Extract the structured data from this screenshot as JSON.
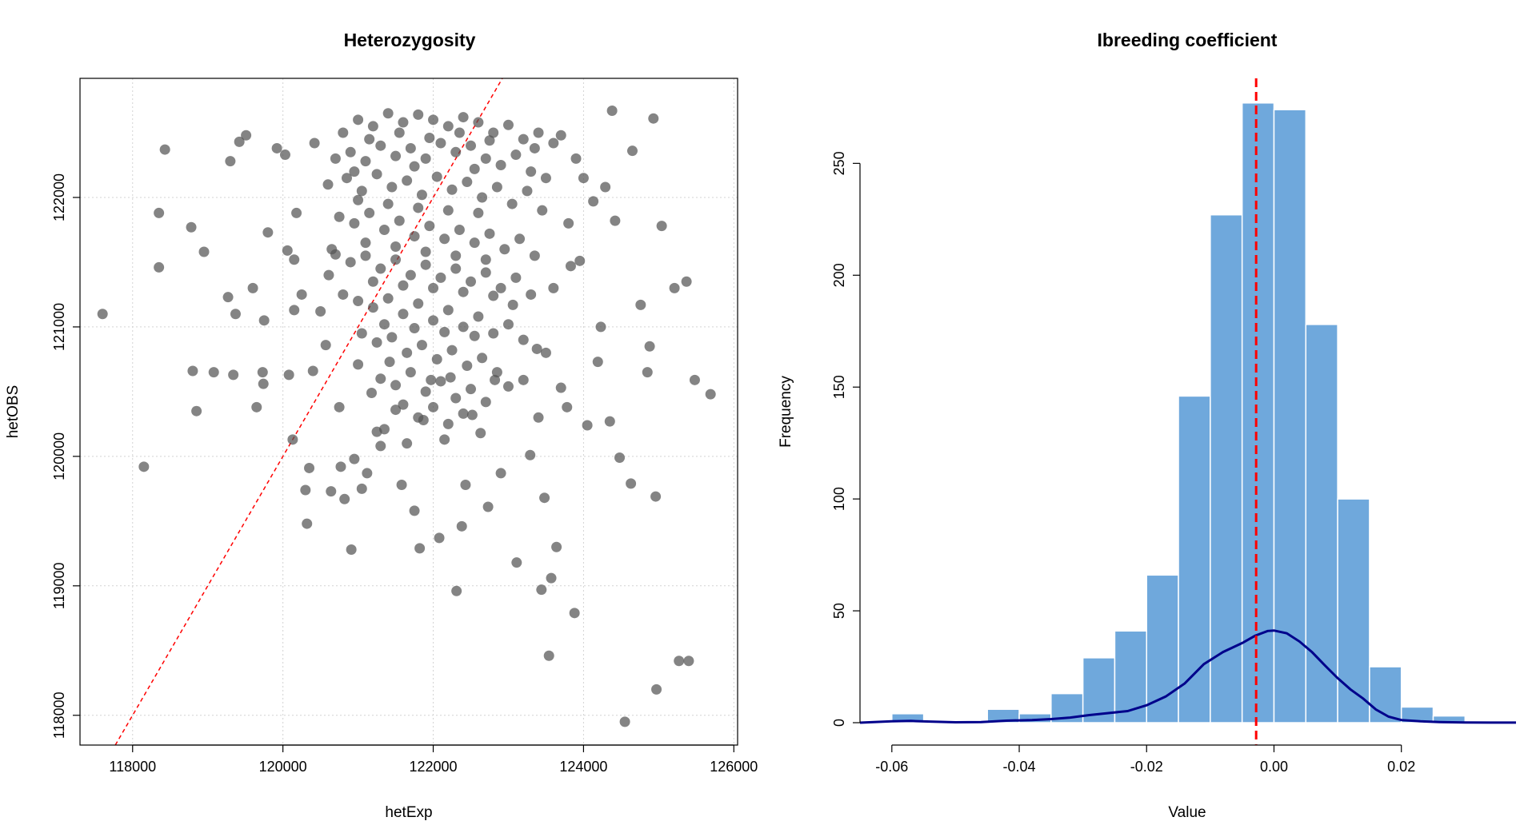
{
  "chart_data": [
    {
      "type": "scatter",
      "title": "Heterozygosity",
      "xlabel": "hetExp",
      "ylabel": "hetOBS",
      "xlim": [
        117300,
        126050
      ],
      "ylim": [
        117770,
        122920
      ],
      "x_ticks": [
        118000,
        120000,
        122000,
        124000,
        126000
      ],
      "x_tick_labels": [
        "118000",
        "120000",
        "122000",
        "124000",
        "126000"
      ],
      "y_ticks": [
        118000,
        119000,
        120000,
        121000,
        122000
      ],
      "y_tick_labels": [
        "118000",
        "119000",
        "120000",
        "121000",
        "122000"
      ],
      "grid": true,
      "point_color": "#555555",
      "reference_line": {
        "type": "identity",
        "slope": 1,
        "intercept": 0,
        "color": "#ff0000",
        "style": "dashed"
      },
      "points": [
        [
          117600,
          121100
        ],
        [
          118150,
          119920
        ],
        [
          118350,
          121880
        ],
        [
          118350,
          121460
        ],
        [
          118430,
          122370
        ],
        [
          118780,
          121770
        ],
        [
          118800,
          120660
        ],
        [
          118850,
          120350
        ],
        [
          118950,
          121580
        ],
        [
          119080,
          120650
        ],
        [
          119270,
          121230
        ],
        [
          119300,
          122280
        ],
        [
          119340,
          120630
        ],
        [
          119370,
          121100
        ],
        [
          119420,
          122430
        ],
        [
          119510,
          122480
        ],
        [
          119600,
          121300
        ],
        [
          119650,
          120380
        ],
        [
          119730,
          120650
        ],
        [
          119740,
          120560
        ],
        [
          119750,
          121050
        ],
        [
          119800,
          121730
        ],
        [
          119920,
          122380
        ],
        [
          120030,
          122330
        ],
        [
          120060,
          121590
        ],
        [
          120080,
          120630
        ],
        [
          120130,
          120130
        ],
        [
          120150,
          121520
        ],
        [
          120150,
          121130
        ],
        [
          120180,
          121880
        ],
        [
          120250,
          121250
        ],
        [
          120300,
          119740
        ],
        [
          120320,
          119480
        ],
        [
          120350,
          119910
        ],
        [
          120400,
          120660
        ],
        [
          120420,
          122420
        ],
        [
          120500,
          121120
        ],
        [
          120570,
          120860
        ],
        [
          120610,
          121400
        ],
        [
          120640,
          119730
        ],
        [
          120700,
          121560
        ],
        [
          120750,
          120380
        ],
        [
          120770,
          119920
        ],
        [
          120820,
          119670
        ],
        [
          120910,
          119280
        ],
        [
          120950,
          119980
        ],
        [
          121000,
          120710
        ],
        [
          121050,
          119750
        ],
        [
          121120,
          119870
        ],
        [
          121180,
          120490
        ],
        [
          121250,
          120190
        ],
        [
          121300,
          120080
        ],
        [
          121350,
          120210
        ],
        [
          121420,
          120730
        ],
        [
          121500,
          120360
        ],
        [
          121580,
          119780
        ],
        [
          121650,
          120100
        ],
        [
          121750,
          119580
        ],
        [
          121820,
          119290
        ],
        [
          121870,
          120280
        ],
        [
          121970,
          120590
        ],
        [
          122080,
          119370
        ],
        [
          122150,
          120130
        ],
        [
          122230,
          120610
        ],
        [
          122310,
          118960
        ],
        [
          122380,
          119460
        ],
        [
          122430,
          119780
        ],
        [
          122520,
          120320
        ],
        [
          122630,
          120180
        ],
        [
          122730,
          119610
        ],
        [
          122820,
          120590
        ],
        [
          122900,
          119870
        ],
        [
          123000,
          120540
        ],
        [
          123060,
          121170
        ],
        [
          123110,
          119180
        ],
        [
          123200,
          120590
        ],
        [
          123290,
          120010
        ],
        [
          123380,
          120830
        ],
        [
          123440,
          118970
        ],
        [
          123480,
          119680
        ],
        [
          123540,
          118460
        ],
        [
          123570,
          119060
        ],
        [
          123640,
          119300
        ],
        [
          123700,
          120530
        ],
        [
          123780,
          120380
        ],
        [
          123830,
          121470
        ],
        [
          123880,
          118790
        ],
        [
          123950,
          121510
        ],
        [
          124050,
          120240
        ],
        [
          124130,
          121970
        ],
        [
          124190,
          120730
        ],
        [
          124230,
          121000
        ],
        [
          124290,
          122080
        ],
        [
          124350,
          120270
        ],
        [
          124380,
          122670
        ],
        [
          124420,
          121820
        ],
        [
          124480,
          119990
        ],
        [
          124550,
          117950
        ],
        [
          124630,
          119790
        ],
        [
          124650,
          122360
        ],
        [
          124760,
          121170
        ],
        [
          124850,
          120650
        ],
        [
          124880,
          120850
        ],
        [
          124930,
          122610
        ],
        [
          124960,
          119690
        ],
        [
          124970,
          118200
        ],
        [
          125040,
          121780
        ],
        [
          125210,
          121300
        ],
        [
          125270,
          118420
        ],
        [
          125370,
          121350
        ],
        [
          125400,
          118420
        ],
        [
          125480,
          120590
        ],
        [
          125690,
          120480
        ],
        [
          120800,
          122500
        ],
        [
          121000,
          122600
        ],
        [
          121200,
          122550
        ],
        [
          121400,
          122650
        ],
        [
          121600,
          122580
        ],
        [
          121800,
          122640
        ],
        [
          122000,
          122600
        ],
        [
          122200,
          122550
        ],
        [
          122400,
          122620
        ],
        [
          122600,
          122580
        ],
        [
          122800,
          122500
        ],
        [
          123000,
          122560
        ],
        [
          123200,
          122450
        ],
        [
          123400,
          122500
        ],
        [
          123600,
          122420
        ],
        [
          120700,
          122300
        ],
        [
          120900,
          122350
        ],
        [
          121100,
          122280
        ],
        [
          121300,
          122400
        ],
        [
          121500,
          122320
        ],
        [
          121700,
          122380
        ],
        [
          121900,
          122300
        ],
        [
          122100,
          122420
        ],
        [
          122300,
          122350
        ],
        [
          122500,
          122400
        ],
        [
          122700,
          122300
        ],
        [
          122900,
          122250
        ],
        [
          123100,
          122330
        ],
        [
          123300,
          122200
        ],
        [
          123500,
          122150
        ],
        [
          120600,
          122100
        ],
        [
          120850,
          122150
        ],
        [
          121050,
          122050
        ],
        [
          121250,
          122180
        ],
        [
          121450,
          122080
        ],
        [
          121650,
          122130
        ],
        [
          121850,
          122020
        ],
        [
          122050,
          122160
        ],
        [
          122250,
          122060
        ],
        [
          122450,
          122120
        ],
        [
          122650,
          122000
        ],
        [
          122850,
          122080
        ],
        [
          123050,
          121950
        ],
        [
          123250,
          122050
        ],
        [
          123450,
          121900
        ],
        [
          120750,
          121850
        ],
        [
          120950,
          121800
        ],
        [
          121150,
          121880
        ],
        [
          121350,
          121750
        ],
        [
          121550,
          121820
        ],
        [
          121750,
          121700
        ],
        [
          121950,
          121780
        ],
        [
          122150,
          121680
        ],
        [
          122350,
          121750
        ],
        [
          122550,
          121650
        ],
        [
          122750,
          121720
        ],
        [
          122950,
          121600
        ],
        [
          123150,
          121680
        ],
        [
          123350,
          121550
        ],
        [
          120650,
          121600
        ],
        [
          120900,
          121500
        ],
        [
          121100,
          121550
        ],
        [
          121300,
          121450
        ],
        [
          121500,
          121520
        ],
        [
          121700,
          121400
        ],
        [
          121900,
          121480
        ],
        [
          122100,
          121380
        ],
        [
          122300,
          121450
        ],
        [
          122500,
          121350
        ],
        [
          122700,
          121420
        ],
        [
          122900,
          121300
        ],
        [
          123100,
          121380
        ],
        [
          123300,
          121250
        ],
        [
          120800,
          121250
        ],
        [
          121000,
          121200
        ],
        [
          121200,
          121150
        ],
        [
          121400,
          121220
        ],
        [
          121600,
          121100
        ],
        [
          121800,
          121180
        ],
        [
          122000,
          121050
        ],
        [
          122200,
          121130
        ],
        [
          122400,
          121000
        ],
        [
          122600,
          121080
        ],
        [
          122800,
          120950
        ],
        [
          123000,
          121020
        ],
        [
          123200,
          120900
        ],
        [
          121050,
          120950
        ],
        [
          121250,
          120880
        ],
        [
          121450,
          120920
        ],
        [
          121650,
          120800
        ],
        [
          121850,
          120860
        ],
        [
          122050,
          120750
        ],
        [
          122250,
          120820
        ],
        [
          122450,
          120700
        ],
        [
          122650,
          120760
        ],
        [
          122850,
          120650
        ],
        [
          121300,
          120600
        ],
        [
          121500,
          120550
        ],
        [
          121700,
          120650
        ],
        [
          121900,
          120500
        ],
        [
          122100,
          120580
        ],
        [
          122300,
          120450
        ],
        [
          122500,
          120520
        ],
        [
          122700,
          120420
        ],
        [
          121600,
          120400
        ],
        [
          121800,
          120300
        ],
        [
          122000,
          120380
        ],
        [
          122200,
          120250
        ],
        [
          122400,
          120330
        ],
        [
          121150,
          122450
        ],
        [
          121550,
          122500
        ],
        [
          121950,
          122460
        ],
        [
          122350,
          122500
        ],
        [
          122750,
          122440
        ],
        [
          121000,
          121980
        ],
        [
          121400,
          121950
        ],
        [
          121800,
          121920
        ],
        [
          122200,
          121900
        ],
        [
          122600,
          121880
        ],
        [
          121100,
          121650
        ],
        [
          121500,
          121620
        ],
        [
          121900,
          121580
        ],
        [
          122300,
          121550
        ],
        [
          122700,
          121520
        ],
        [
          121200,
          121350
        ],
        [
          121600,
          121320
        ],
        [
          122000,
          121300
        ],
        [
          122400,
          121270
        ],
        [
          122800,
          121240
        ],
        [
          121350,
          121020
        ],
        [
          121750,
          120990
        ],
        [
          122150,
          120960
        ],
        [
          122550,
          120930
        ],
        [
          120950,
          122200
        ],
        [
          121750,
          122240
        ],
        [
          122550,
          122220
        ],
        [
          123350,
          122380
        ],
        [
          123700,
          122480
        ],
        [
          123900,
          122300
        ],
        [
          124000,
          122150
        ],
        [
          123800,
          121800
        ],
        [
          123600,
          121300
        ],
        [
          123500,
          120800
        ],
        [
          123400,
          120300
        ]
      ]
    },
    {
      "type": "bar",
      "subtype": "histogram",
      "title": "Ibreeding coefficient",
      "xlabel": "Value",
      "ylabel": "Frequency",
      "xlim": [
        -0.065,
        0.038
      ],
      "ylim": [
        -10,
        288
      ],
      "x_ticks": [
        -0.06,
        -0.04,
        -0.02,
        0.0,
        0.02
      ],
      "x_tick_labels": [
        "-0.06",
        "-0.04",
        "-0.02",
        "0.00",
        "0.02"
      ],
      "y_ticks": [
        0,
        50,
        100,
        150,
        200,
        250
      ],
      "y_tick_labels": [
        "0",
        "50",
        "100",
        "150",
        "200",
        "250"
      ],
      "bar_color": "#6fa8dc",
      "bins": [
        {
          "x0": -0.06,
          "x1": -0.055,
          "count": 4
        },
        {
          "x0": -0.055,
          "x1": -0.05,
          "count": 0
        },
        {
          "x0": -0.05,
          "x1": -0.045,
          "count": 0
        },
        {
          "x0": -0.045,
          "x1": -0.04,
          "count": 6
        },
        {
          "x0": -0.04,
          "x1": -0.035,
          "count": 4
        },
        {
          "x0": -0.035,
          "x1": -0.03,
          "count": 13
        },
        {
          "x0": -0.03,
          "x1": -0.025,
          "count": 29
        },
        {
          "x0": -0.025,
          "x1": -0.02,
          "count": 41
        },
        {
          "x0": -0.02,
          "x1": -0.015,
          "count": 66
        },
        {
          "x0": -0.015,
          "x1": -0.01,
          "count": 146
        },
        {
          "x0": -0.01,
          "x1": -0.005,
          "count": 227
        },
        {
          "x0": -0.005,
          "x1": 0.0,
          "count": 277
        },
        {
          "x0": 0.0,
          "x1": 0.005,
          "count": 274
        },
        {
          "x0": 0.005,
          "x1": 0.01,
          "count": 178
        },
        {
          "x0": 0.01,
          "x1": 0.015,
          "count": 100
        },
        {
          "x0": 0.015,
          "x1": 0.02,
          "count": 25
        },
        {
          "x0": 0.02,
          "x1": 0.025,
          "count": 7
        },
        {
          "x0": 0.025,
          "x1": 0.03,
          "count": 3
        }
      ],
      "density_curve": {
        "color": "#00008b",
        "x": [
          -0.065,
          -0.06,
          -0.057,
          -0.054,
          -0.05,
          -0.046,
          -0.042,
          -0.038,
          -0.035,
          -0.032,
          -0.029,
          -0.026,
          -0.023,
          -0.02,
          -0.017,
          -0.014,
          -0.011,
          -0.008,
          -0.005,
          -0.003,
          -0.001,
          0.0,
          0.002,
          0.004,
          0.006,
          0.008,
          0.01,
          0.012,
          0.014,
          0.016,
          0.018,
          0.02,
          0.023,
          0.026,
          0.03,
          0.034,
          0.038
        ],
        "y": [
          0,
          0.6,
          0.8,
          0.5,
          0.2,
          0.3,
          0.9,
          1.2,
          1.6,
          2.3,
          3.4,
          4.3,
          5.2,
          7.8,
          11.7,
          17.6,
          26.2,
          31.6,
          35.6,
          38.8,
          41.0,
          41.2,
          40.0,
          36.3,
          31.5,
          25.6,
          19.9,
          14.9,
          10.8,
          5.9,
          2.7,
          1.2,
          0.6,
          0.3,
          0.1,
          0.05,
          0.05
        ]
      },
      "mean_line": {
        "x": -0.0028,
        "color": "#ff0000",
        "style": "dashed"
      }
    }
  ]
}
